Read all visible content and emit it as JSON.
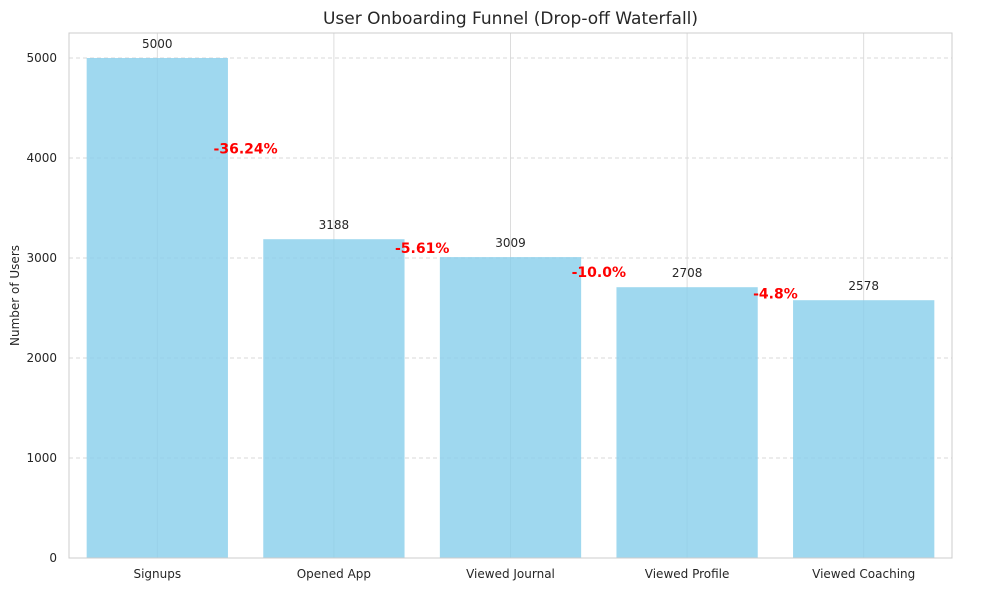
{
  "colors": {
    "bar": "#87ceeb",
    "drop": "#ff0000",
    "grid": "#d9d9d9",
    "axis": "#cccccc",
    "text": "#262626"
  },
  "chart_data": {
    "type": "bar",
    "title": "User Onboarding Funnel (Drop-off Waterfall)",
    "xlabel": "",
    "ylabel": "Number of Users",
    "ylim": [
      0,
      5250
    ],
    "yticks": [
      0,
      1000,
      2000,
      3000,
      4000,
      5000
    ],
    "grid": true,
    "categories": [
      "Signups",
      "Opened App",
      "Viewed Journal",
      "Viewed Profile",
      "Viewed Coaching"
    ],
    "values": [
      5000,
      3188,
      3009,
      2708,
      2578
    ],
    "drop_offs": [
      "-36.24%",
      "-5.61%",
      "-10.0%",
      "-4.8%"
    ]
  }
}
